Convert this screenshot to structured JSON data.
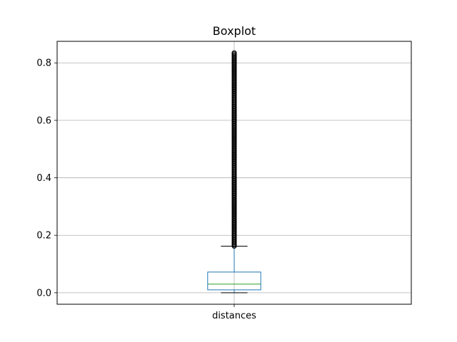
{
  "chart_data": {
    "type": "boxplot",
    "title": "Boxplot",
    "xlabel": "",
    "ylabel": "",
    "ylim": [
      -0.04,
      0.875
    ],
    "yticks": [
      0.0,
      0.2,
      0.4,
      0.6,
      0.8
    ],
    "ytick_labels": [
      "0.0",
      "0.2",
      "0.4",
      "0.6",
      "0.8"
    ],
    "categories": [
      "distances"
    ],
    "grid": true,
    "boxes": [
      {
        "name": "distances",
        "whisker_low": 0.0,
        "q1": 0.01,
        "median": 0.03,
        "q3": 0.072,
        "whisker_high": 0.162,
        "outliers_range": [
          0.162,
          0.835
        ]
      }
    ],
    "colors": {
      "box": "#1f77b4",
      "median": "#2ca02c",
      "whisker": "#1f77b4",
      "cap": "#000000",
      "outlier": "#000000",
      "grid": "#b0b0b0"
    }
  }
}
